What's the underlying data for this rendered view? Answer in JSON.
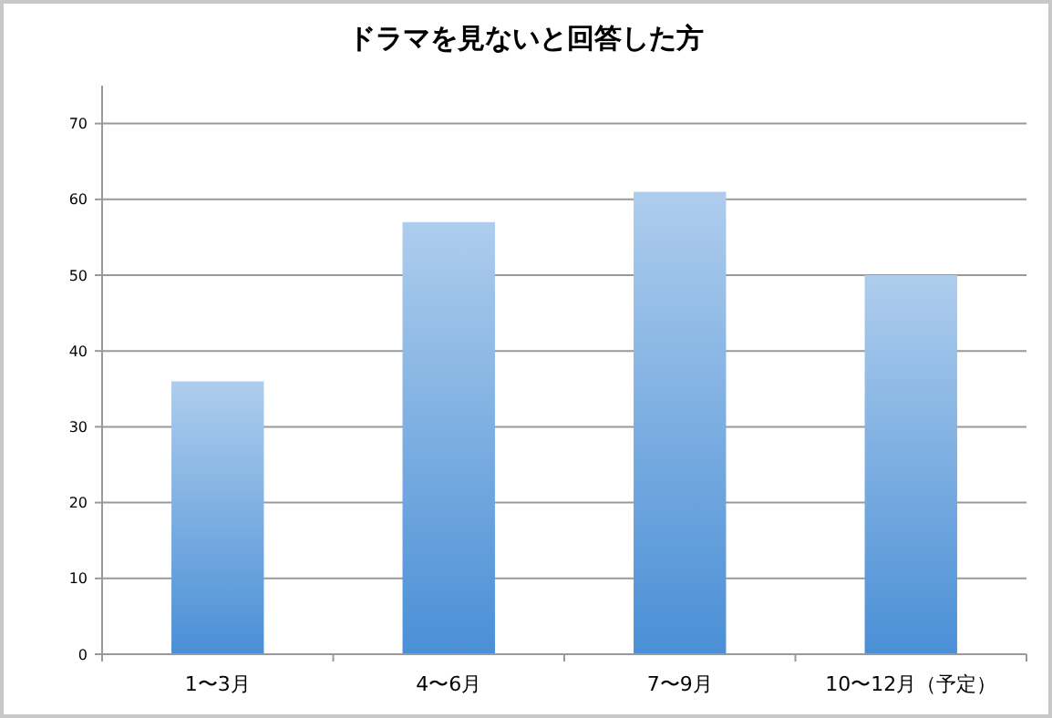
{
  "chart_data": {
    "type": "bar",
    "title": "ドラマを見ないと回答した方",
    "categories": [
      "1〜3月",
      "4〜6月",
      "7〜9月",
      "10〜12月（予定）"
    ],
    "values": [
      36,
      57,
      61,
      50
    ],
    "color": "#4a8fd6",
    "ylim": [
      0,
      75
    ],
    "yticks": [
      0,
      10,
      20,
      30,
      40,
      50,
      60,
      70
    ],
    "grid": "y"
  }
}
